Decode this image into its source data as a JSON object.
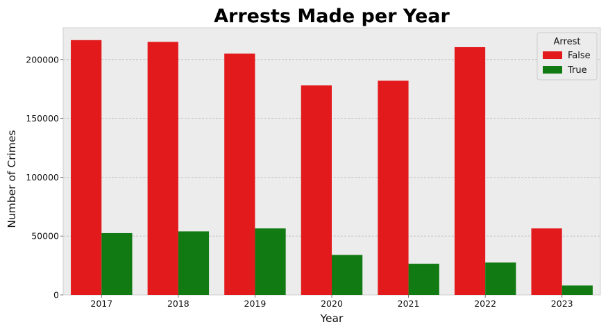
{
  "chart_data": {
    "type": "bar",
    "title": "Arrests Made per Year",
    "xlabel": "Year",
    "ylabel": "Number of Crimes",
    "categories": [
      "2017",
      "2018",
      "2019",
      "2020",
      "2021",
      "2022",
      "2023"
    ],
    "series": [
      {
        "name": "False",
        "color": "#e31a1c",
        "values": [
          216500,
          215000,
          205000,
          178000,
          182000,
          210500,
          56500
        ]
      },
      {
        "name": "True",
        "color": "#127a12",
        "values": [
          52500,
          54000,
          56500,
          34000,
          26500,
          27500,
          8000
        ]
      }
    ],
    "ylim": [
      0,
      227000
    ],
    "yticks": [
      0,
      50000,
      100000,
      150000,
      200000
    ],
    "grid": true,
    "legend": {
      "title": "Arrest",
      "placement": "top-right"
    },
    "colors": {
      "plot_background": "#ececec",
      "grid": "#bdbdbd"
    }
  }
}
